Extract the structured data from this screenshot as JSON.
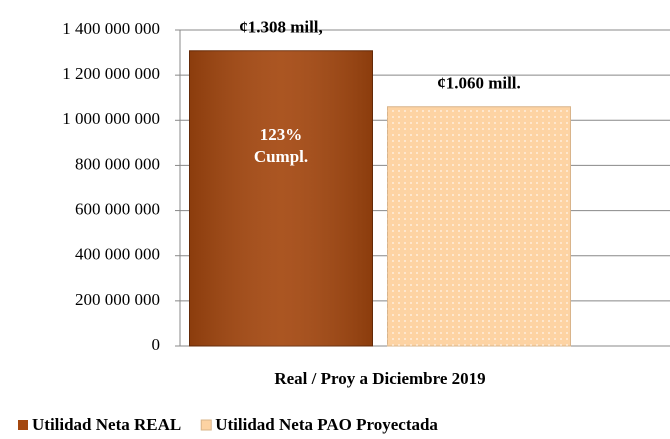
{
  "chart_data": {
    "type": "bar",
    "categories": [
      "Real / Proy a Diciembre 2019"
    ],
    "series": [
      {
        "name": "Utilidad Neta REAL",
        "color": "#a4470f",
        "values": [
          1308000000
        ],
        "value_labels": [
          "¢1.308 mill,"
        ]
      },
      {
        "name": "Utilidad Neta PAO Proyectada",
        "color": "#fdd3a3",
        "values": [
          1060000000
        ],
        "value_labels": [
          "¢1.060 mill."
        ]
      }
    ],
    "annotations": [
      "123%",
      "Cumpl."
    ],
    "ylim": [
      0,
      1400000000
    ],
    "yticks": [
      0,
      {
        "value": 200000000,
        "label": "200 000 000"
      },
      {
        "value": 400000000,
        "label": "400 000 000"
      },
      {
        "value": 600000000,
        "label": "600 000 000"
      },
      {
        "value": 800000000,
        "label": "800 000 000"
      },
      {
        "value": 1000000000,
        "label": "1 000 000 000"
      },
      {
        "value": 1200000000,
        "label": "1 200 000 000"
      },
      {
        "value": 1400000000,
        "label": "1 400 000 000"
      }
    ],
    "grid": true,
    "legend": "bottom"
  }
}
